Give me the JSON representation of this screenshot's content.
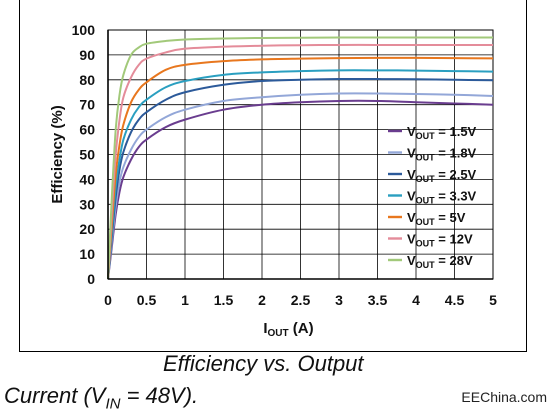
{
  "caption": {
    "line1": "Efficiency vs. Output",
    "line2_prefix": "Current (V",
    "line2_sub": "IN",
    "line2_suffix": " = 48V)."
  },
  "watermark": "EEChina.com",
  "chart_data": {
    "type": "line",
    "xlabel_main": "I",
    "xlabel_sub": "OUT",
    "xlabel_unit": " (A)",
    "ylabel": "Efficiency (%)",
    "xlim": [
      0,
      5
    ],
    "ylim": [
      0,
      100
    ],
    "x_ticks": [
      "0",
      "0.5",
      "1",
      "1.5",
      "2",
      "2.5",
      "3",
      "3.5",
      "4",
      "4.5",
      "5"
    ],
    "y_ticks": [
      "0",
      "10",
      "20",
      "30",
      "40",
      "50",
      "60",
      "70",
      "80",
      "90",
      "100"
    ],
    "grid": true,
    "legend_position": "inside-lower-right",
    "legend_prefix": "V",
    "legend_sub": "OUT",
    "x": [
      0,
      0.05,
      0.1,
      0.15,
      0.2,
      0.3,
      0.4,
      0.5,
      0.75,
      1,
      1.5,
      2,
      2.5,
      3,
      3.5,
      4,
      4.5,
      5
    ],
    "series": [
      {
        "name": "1.5V",
        "color": "#6a3d8f",
        "values": [
          0,
          13,
          26,
          35,
          41,
          48,
          53,
          56,
          61,
          64,
          68,
          70,
          71,
          71.5,
          71.5,
          71,
          70.5,
          70
        ]
      },
      {
        "name": "1.8V",
        "color": "#93a7d8",
        "values": [
          0,
          15,
          29,
          39,
          45,
          52,
          57,
          60,
          65,
          68,
          71.5,
          73,
          74,
          74.5,
          74.5,
          74.3,
          74,
          73.5
        ]
      },
      {
        "name": "2.5V",
        "color": "#2c5a9a",
        "values": [
          0,
          17,
          33,
          44,
          51,
          59,
          64,
          67,
          72,
          75,
          78,
          79.5,
          80,
          80.3,
          80.3,
          80.2,
          80,
          79.8
        ]
      },
      {
        "name": "3.3V",
        "color": "#2a9fc0",
        "values": [
          0,
          19,
          37,
          48,
          56,
          64,
          69,
          72,
          77,
          79.5,
          82,
          83,
          83.5,
          83.8,
          83.8,
          83.7,
          83.5,
          83.3
        ]
      },
      {
        "name": "5V",
        "color": "#e8771e",
        "values": [
          0,
          22,
          42,
          54,
          62,
          71,
          76,
          79,
          84,
          86,
          87.5,
          88.2,
          88.5,
          88.7,
          88.8,
          88.8,
          88.7,
          88.6
        ]
      },
      {
        "name": "12V",
        "color": "#e48c9a",
        "values": [
          0,
          27,
          50,
          64,
          73,
          81,
          86,
          88.5,
          91,
          92.5,
          93.3,
          93.7,
          93.9,
          94,
          94,
          94,
          94,
          94
        ]
      },
      {
        "name": "28V",
        "color": "#a2c97a",
        "values": [
          0,
          33,
          60,
          74,
          82,
          90,
          93,
          94.5,
          95.6,
          96.2,
          96.6,
          96.8,
          96.9,
          97,
          97,
          97,
          97,
          97
        ]
      }
    ]
  }
}
